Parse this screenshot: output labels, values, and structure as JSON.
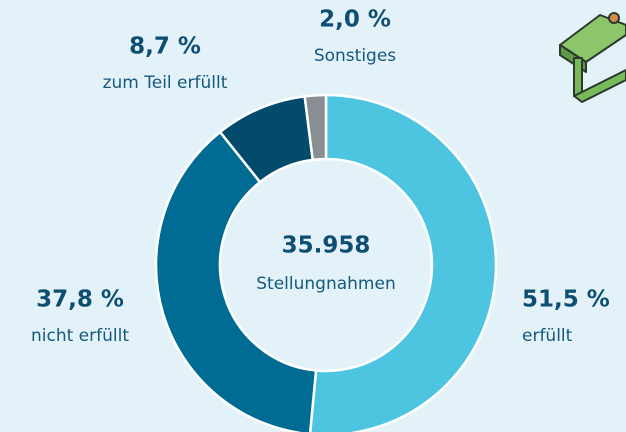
{
  "chart_data": {
    "type": "pie",
    "categories": [
      "erfüllt",
      "nicht erfüllt",
      "zum Teil erfüllt",
      "Sonstiges"
    ],
    "values": [
      51.5,
      37.8,
      8.7,
      2.0
    ],
    "value_labels": [
      "51,5 %",
      "37,8 %",
      "8,7 %",
      "2,0 %"
    ],
    "colors": [
      "#4ec5e0",
      "#006c94",
      "#024b6d",
      "#898e93"
    ],
    "total": {
      "value": 35958,
      "label": "35.958"
    },
    "total_name": "Stellungnahmen"
  }
}
